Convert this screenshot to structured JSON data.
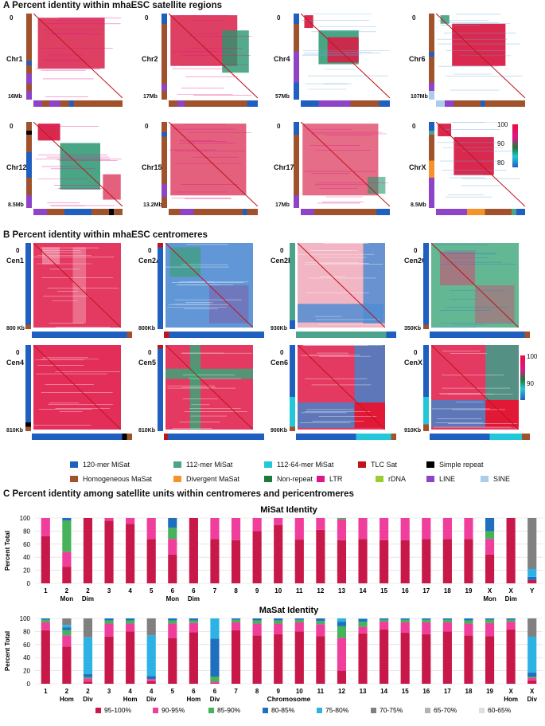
{
  "sectionA": {
    "title": "A Percent identity within mhaESC satellite regions",
    "panels": [
      {
        "label": "Chr1",
        "size": "16Mb",
        "zero": "0"
      },
      {
        "label": "Chr2",
        "size": "17Mb",
        "zero": "0"
      },
      {
        "label": "Chr4",
        "size": "57Mb",
        "zero": "0"
      },
      {
        "label": "Chr6",
        "size": "107Mb",
        "zero": "0"
      },
      {
        "label": "Chr12",
        "size": "8.5Mb",
        "zero": "0"
      },
      {
        "label": "Chr15",
        "size": "13.2Mb",
        "zero": "0"
      },
      {
        "label": "Chr17",
        "size": "17Mb",
        "zero": "0"
      },
      {
        "label": "ChrX",
        "size": "8.5Mb",
        "zero": "0"
      }
    ],
    "scale": {
      "ticks": [
        "100",
        "90",
        "80"
      ]
    }
  },
  "sectionB": {
    "title": "B Percent identity within mhaESC centromeres",
    "panels": [
      {
        "label": "Cen1",
        "size": "800 Kb",
        "zero": "0"
      },
      {
        "label": "Cen2A",
        "size": "800Kb",
        "zero": "0"
      },
      {
        "label": "Cen2B",
        "size": "930Kb",
        "zero": "0"
      },
      {
        "label": "Cen2C",
        "size": "350Kb",
        "zero": "0"
      },
      {
        "label": "Cen4",
        "size": "810Kb",
        "zero": "0"
      },
      {
        "label": "Cen5",
        "size": "810Kb",
        "zero": "0"
      },
      {
        "label": "Cen6",
        "size": "900Kb",
        "zero": "0"
      },
      {
        "label": "CenX",
        "size": "910Kb",
        "zero": "0"
      }
    ],
    "scale": {
      "ticks": [
        "100",
        "90"
      ]
    }
  },
  "legend": [
    {
      "label": "120-mer MiSat",
      "color": "#1f5fbf"
    },
    {
      "label": "112-mer MiSat",
      "color": "#4aa38a"
    },
    {
      "label": "112-64-mer MiSat",
      "color": "#22c8d8"
    },
    {
      "label": "TLC Sat",
      "color": "#c0141c"
    },
    {
      "label": "Simple repeat",
      "color": "#000000"
    },
    {
      "label": "Homogeneous MaSat",
      "color": "#a0522d"
    },
    {
      "label": "Divergent MaSat",
      "color": "#f5922a"
    },
    {
      "label": "Non-repeat",
      "color": "#1e7a3a"
    },
    {
      "label": "LTR",
      "color": "#e0148c"
    },
    {
      "label": "rDNA",
      "color": "#9acd32"
    },
    {
      "label": "LINE",
      "color": "#8e44c6"
    },
    {
      "label": "SINE",
      "color": "#a9cdea"
    }
  ],
  "sectionC": {
    "title": "C Percent identity among satellite units within centromeres and pericentromeres"
  },
  "chart_data": [
    {
      "type": "bar",
      "stacked": true,
      "title": "MiSat Identity",
      "ylabel": "Percent Total",
      "ylim": [
        0,
        100
      ],
      "yticks": [
        "0",
        "20",
        "40",
        "60",
        "80",
        "100"
      ],
      "categories": [
        "1",
        "2",
        "2",
        "3",
        "4",
        "5",
        "6",
        "6",
        "7",
        "8",
        "9",
        "10",
        "11",
        "12",
        "13",
        "14",
        "15",
        "16",
        "17",
        "18",
        "19",
        "X",
        "X",
        "Y"
      ],
      "sublabels": [
        "",
        "Mon",
        "Dim",
        "",
        "",
        "",
        "Mon",
        "Dim",
        "",
        "",
        "",
        "",
        "",
        "",
        "",
        "",
        "",
        "",
        "",
        "",
        "",
        "Mon",
        "Dim",
        ""
      ],
      "series": [
        {
          "name": "95-100%",
          "color": "#c8184a",
          "values": [
            72,
            25,
            100,
            96,
            91,
            68,
            44,
            100,
            68,
            66,
            80,
            89,
            67,
            82,
            66,
            68,
            66,
            66,
            68,
            68,
            68,
            44,
            100,
            5
          ]
        },
        {
          "name": "90-95%",
          "color": "#f03e9c",
          "values": [
            28,
            23,
            0,
            4,
            9,
            32,
            24,
            0,
            32,
            34,
            20,
            11,
            33,
            18,
            32,
            32,
            34,
            34,
            32,
            32,
            32,
            24,
            0,
            0
          ]
        },
        {
          "name": "85-90%",
          "color": "#46b25a",
          "values": [
            0,
            48,
            0,
            0,
            0,
            0,
            17,
            0,
            0,
            0,
            0,
            0,
            0,
            0,
            2,
            0,
            0,
            0,
            0,
            0,
            0,
            12,
            0,
            0
          ]
        },
        {
          "name": "80-85%",
          "color": "#1f6fbf",
          "values": [
            0,
            4,
            0,
            0,
            0,
            0,
            15,
            0,
            0,
            0,
            0,
            0,
            0,
            0,
            0,
            0,
            0,
            0,
            0,
            0,
            0,
            20,
            0,
            5
          ]
        },
        {
          "name": "75-80%",
          "color": "#2db2e6",
          "values": [
            0,
            0,
            0,
            0,
            0,
            0,
            0,
            0,
            0,
            0,
            0,
            0,
            0,
            0,
            0,
            0,
            0,
            0,
            0,
            0,
            0,
            0,
            0,
            12
          ]
        },
        {
          "name": "70-75%",
          "color": "#808080",
          "values": [
            0,
            0,
            0,
            0,
            0,
            0,
            0,
            0,
            0,
            0,
            0,
            0,
            0,
            0,
            0,
            0,
            0,
            0,
            0,
            0,
            0,
            0,
            0,
            78
          ]
        },
        {
          "name": "65-70%",
          "color": "#b3b3b3",
          "values": [
            0,
            0,
            0,
            0,
            0,
            0,
            0,
            0,
            0,
            0,
            0,
            0,
            0,
            0,
            0,
            0,
            0,
            0,
            0,
            0,
            0,
            0,
            0,
            0
          ]
        },
        {
          "name": "60-65%",
          "color": "#dedede",
          "values": [
            0,
            0,
            0,
            0,
            0,
            0,
            0,
            0,
            0,
            0,
            0,
            0,
            0,
            0,
            0,
            0,
            0,
            0,
            0,
            0,
            0,
            0,
            0,
            0
          ]
        }
      ]
    },
    {
      "type": "bar",
      "stacked": true,
      "title": "MaSat Identity",
      "ylabel": "Percent Total",
      "xlabel": "Chromosome",
      "ylim": [
        0,
        100
      ],
      "yticks": [
        "0",
        "20",
        "40",
        "60",
        "80",
        "100"
      ],
      "categories": [
        "1",
        "2",
        "2",
        "3",
        "4",
        "4",
        "5",
        "6",
        "6",
        "7",
        "8",
        "9",
        "10",
        "11",
        "12",
        "13",
        "14",
        "15",
        "16",
        "17",
        "18",
        "19",
        "X",
        "X"
      ],
      "sublabels": [
        "",
        "Hom",
        "Div",
        "",
        "Hom",
        "Div",
        "",
        "Hom",
        "Div",
        "",
        "",
        "",
        "",
        "",
        "",
        "",
        "",
        "",
        "",
        "",
        "",
        "",
        "Hom",
        "Div"
      ],
      "series": [
        {
          "name": "95-100%",
          "color": "#c8184a",
          "values": [
            82,
            57,
            3,
            72,
            80,
            4,
            70,
            79,
            1,
            82,
            74,
            76,
            80,
            73,
            20,
            77,
            83,
            78,
            76,
            80,
            74,
            73,
            83,
            5
          ]
        },
        {
          "name": "90-95%",
          "color": "#f03e9c",
          "values": [
            12,
            17,
            5,
            20,
            12,
            3,
            22,
            14,
            2,
            12,
            18,
            16,
            14,
            18,
            50,
            10,
            12,
            16,
            18,
            14,
            18,
            20,
            12,
            4
          ]
        },
        {
          "name": "85-90%",
          "color": "#46b25a",
          "values": [
            4,
            8,
            2,
            5,
            5,
            0,
            5,
            4,
            8,
            4,
            5,
            5,
            4,
            5,
            18,
            8,
            3,
            4,
            4,
            4,
            5,
            5,
            3,
            2
          ]
        },
        {
          "name": "80-85%",
          "color": "#1f6fbf",
          "values": [
            2,
            4,
            5,
            3,
            3,
            5,
            3,
            3,
            58,
            2,
            3,
            3,
            2,
            4,
            7,
            4,
            2,
            2,
            2,
            2,
            3,
            2,
            2,
            6
          ]
        },
        {
          "name": "75-80%",
          "color": "#2db2e6",
          "values": [
            0,
            4,
            56,
            0,
            0,
            62,
            0,
            0,
            31,
            0,
            0,
            0,
            0,
            0,
            5,
            1,
            0,
            0,
            0,
            0,
            0,
            0,
            0,
            55
          ]
        },
        {
          "name": "70-75%",
          "color": "#808080",
          "values": [
            0,
            10,
            29,
            0,
            0,
            26,
            0,
            0,
            0,
            0,
            0,
            0,
            0,
            0,
            0,
            0,
            0,
            0,
            0,
            0,
            0,
            0,
            0,
            28
          ]
        },
        {
          "name": "65-70%",
          "color": "#b3b3b3",
          "values": [
            0,
            0,
            0,
            0,
            0,
            0,
            0,
            0,
            0,
            0,
            0,
            0,
            0,
            0,
            0,
            0,
            0,
            0,
            0,
            0,
            0,
            0,
            0,
            0
          ]
        },
        {
          "name": "60-65%",
          "color": "#dedede",
          "values": [
            0,
            0,
            0,
            0,
            0,
            0,
            0,
            0,
            0,
            0,
            0,
            0,
            0,
            0,
            0,
            0,
            0,
            0,
            0,
            0,
            0,
            0,
            0,
            0
          ]
        }
      ]
    }
  ]
}
